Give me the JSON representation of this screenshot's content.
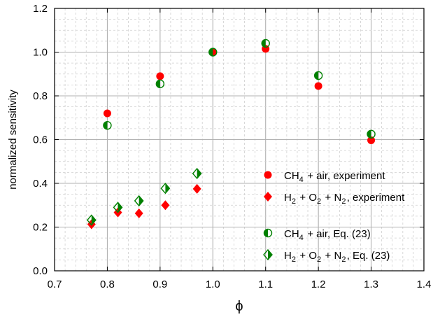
{
  "chart_data": {
    "type": "scatter",
    "xlabel": "ϕ",
    "ylabel": "normalized sensitivity",
    "xlim": [
      0.7,
      1.4
    ],
    "ylim": [
      0.0,
      1.2
    ],
    "x_ticks": [
      "0.7",
      "0.8",
      "0.9",
      "1.0",
      "1.1",
      "1.2",
      "1.3",
      "1.4"
    ],
    "y_ticks": [
      "0.0",
      "0.2",
      "0.4",
      "0.6",
      "0.8",
      "1.0",
      "1.2"
    ],
    "grid": true,
    "legend_position": "right",
    "series": [
      {
        "name": "CH4 + air, experiment",
        "legend": {
          "main": "CH",
          "sub": "4",
          "rest": " + air, experiment"
        },
        "marker": "circle-filled",
        "color": "#ff0000",
        "x": [
          0.8,
          0.9,
          1.0,
          1.1,
          1.2,
          1.3
        ],
        "y": [
          0.72,
          0.89,
          1.0,
          1.015,
          0.845,
          0.597
        ]
      },
      {
        "name": "H2 + O2 + N2, experiment",
        "legend": {
          "parts": [
            [
              "H",
              "2"
            ],
            [
              " + O",
              "2"
            ],
            [
              " + N",
              "2"
            ],
            [
              ", experiment",
              ""
            ]
          ]
        },
        "marker": "diamond-filled",
        "color": "#ff0000",
        "x": [
          0.77,
          0.82,
          0.86,
          0.91,
          0.97
        ],
        "y": [
          0.213,
          0.267,
          0.263,
          0.3,
          0.375
        ]
      },
      {
        "name": "CH4 + air, Eq. (23)",
        "legend": {
          "main": "CH",
          "sub": "4",
          "rest": " + air, Eq. (23)"
        },
        "marker": "circle-half",
        "color": "#008000",
        "x": [
          0.8,
          0.9,
          1.0,
          1.1,
          1.2,
          1.3
        ],
        "y": [
          0.665,
          0.855,
          1.0,
          1.04,
          0.893,
          0.625
        ]
      },
      {
        "name": "H2 + O2 + N2, Eq. (23)",
        "legend": {
          "parts": [
            [
              "H",
              "2"
            ],
            [
              " + O",
              "2"
            ],
            [
              " + N",
              "2"
            ],
            [
              ", Eq. (23)",
              ""
            ]
          ]
        },
        "marker": "diamond-half",
        "color": "#008000",
        "x": [
          0.77,
          0.82,
          0.86,
          0.91,
          0.97
        ],
        "y": [
          0.232,
          0.29,
          0.32,
          0.377,
          0.445
        ]
      }
    ]
  }
}
